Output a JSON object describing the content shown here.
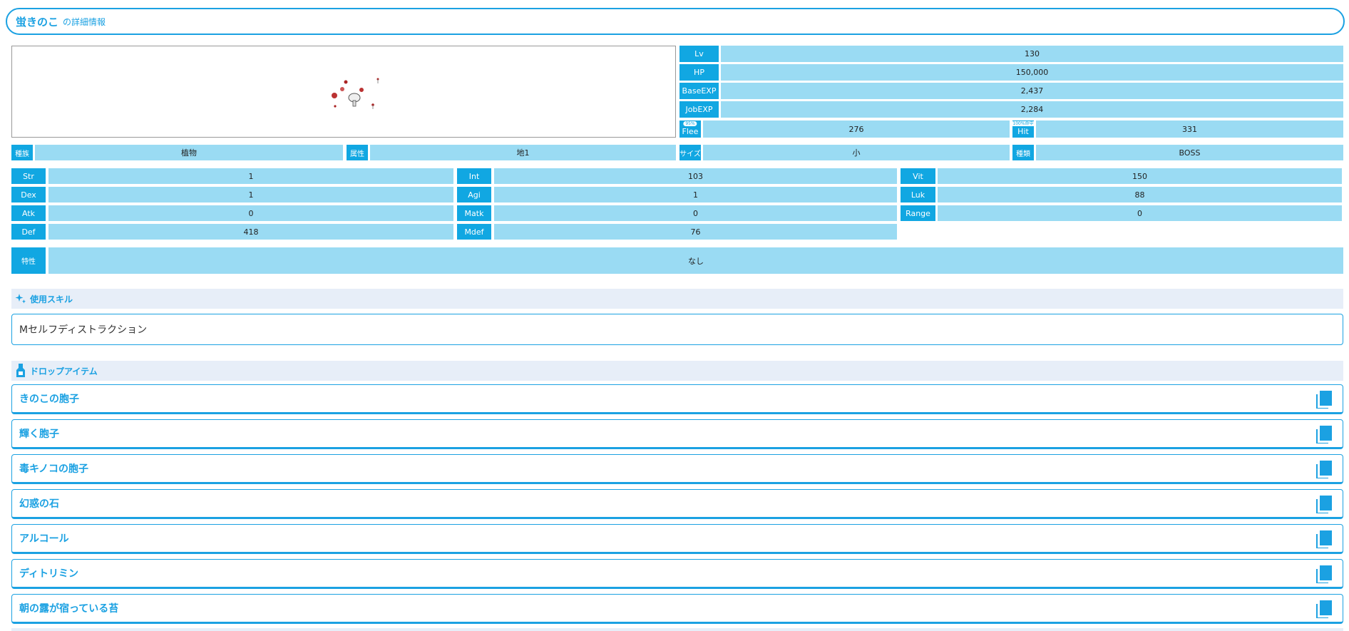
{
  "title": {
    "name": "蛍きのこ",
    "suffix": "の詳細情報"
  },
  "top_stats": [
    {
      "label": "Lv",
      "value": "130"
    },
    {
      "label": "HP",
      "value": "150,000"
    },
    {
      "label": "BaseEXP",
      "value": "2,437"
    },
    {
      "label": "JobEXP",
      "value": "2,284"
    }
  ],
  "flee": {
    "badge": "95%",
    "label": "Flee",
    "value": "276"
  },
  "hit": {
    "badge": "100%命中",
    "label": "Hit",
    "value": "331"
  },
  "attrs": [
    {
      "label": "種族",
      "value": "植物"
    },
    {
      "label": "属性",
      "value": "地1"
    },
    {
      "label": "サイズ",
      "value": "小"
    },
    {
      "label": "種類",
      "value": "BOSS"
    }
  ],
  "stats": {
    "col1": [
      {
        "label": "Str",
        "value": "1"
      },
      {
        "label": "Dex",
        "value": "1"
      },
      {
        "label": "Atk",
        "value": "0"
      },
      {
        "label": "Def",
        "value": "418"
      }
    ],
    "col2": [
      {
        "label": "Int",
        "value": "103"
      },
      {
        "label": "Agi",
        "value": "1"
      },
      {
        "label": "Matk",
        "value": "0"
      },
      {
        "label": "Mdef",
        "value": "76"
      }
    ],
    "col3": [
      {
        "label": "Vit",
        "value": "150"
      },
      {
        "label": "Luk",
        "value": "88"
      },
      {
        "label": "Range",
        "value": "0"
      }
    ]
  },
  "traits": {
    "label": "特性",
    "value": "なし"
  },
  "skills": {
    "heading": "使用スキル",
    "items": [
      "Mセルフディストラクション"
    ]
  },
  "drops": {
    "heading": "ドロップアイテム",
    "items": [
      "きのこの胞子",
      "輝く胞子",
      "毒キノコの胞子",
      "幻惑の石",
      "アルコール",
      "ディトリミン",
      "朝の露が宿っている苔"
    ]
  },
  "colors": {
    "accent": "#1ba1e2",
    "label_bg": "#11a7e2",
    "value_bg": "#9adbf3",
    "section_bg": "#e7eef8"
  },
  "icons": {
    "skills": "sparkle-icon",
    "drops": "potion-bottle-icon",
    "drop_item": "book-icon"
  }
}
